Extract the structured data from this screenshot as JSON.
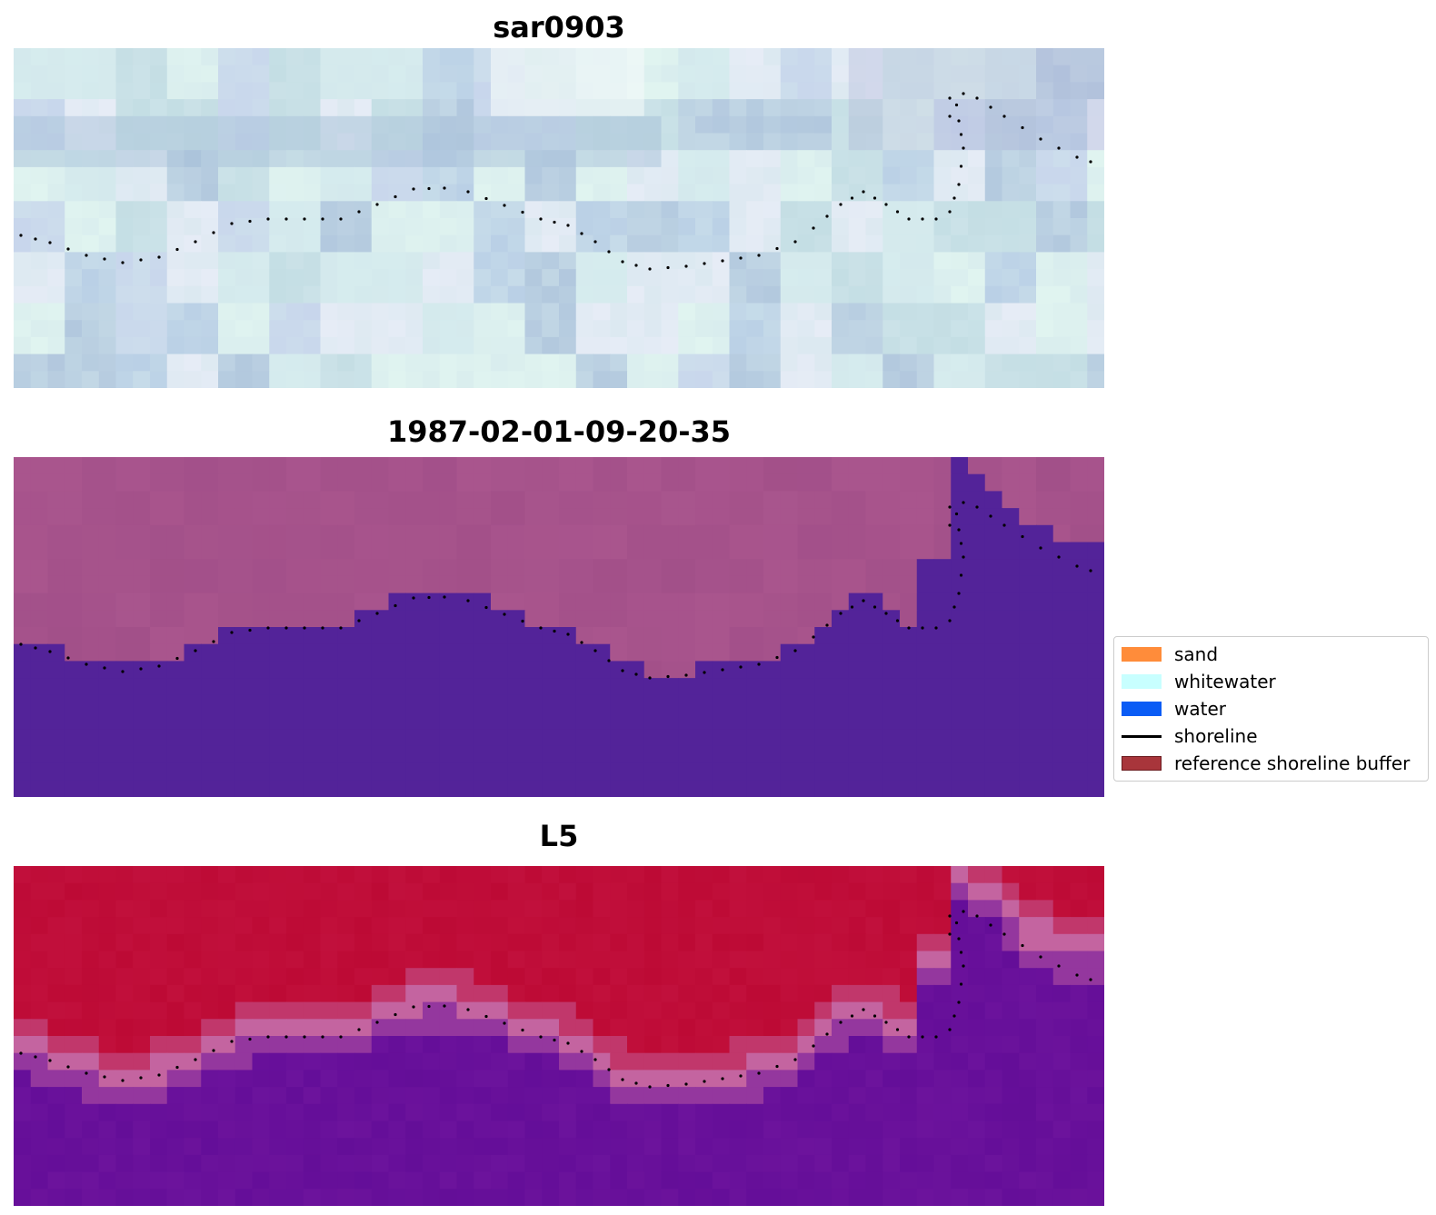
{
  "panels": [
    {
      "title": "sar0903",
      "render": "sar"
    },
    {
      "title": "1987-02-01-09-20-35",
      "render": "classified"
    },
    {
      "title": "L5",
      "render": "index"
    }
  ],
  "colors": {
    "classified_land": "#a9558d",
    "classified_water": "#532399",
    "index_land": "#bd0a35",
    "index_water": "#6c139c",
    "shoreline_dots": "#000000"
  },
  "legend": {
    "items": [
      {
        "label": "sand",
        "color": "#ff8c3a",
        "kind": "patch"
      },
      {
        "label": "whitewater",
        "color": "#c8ffff",
        "kind": "patch"
      },
      {
        "label": "water",
        "color": "#0a5cf5",
        "kind": "patch"
      },
      {
        "label": "shoreline",
        "color": "#000000",
        "kind": "line"
      },
      {
        "label": "reference shoreline buffer",
        "color": "#a8353b",
        "kind": "patch"
      }
    ]
  }
}
